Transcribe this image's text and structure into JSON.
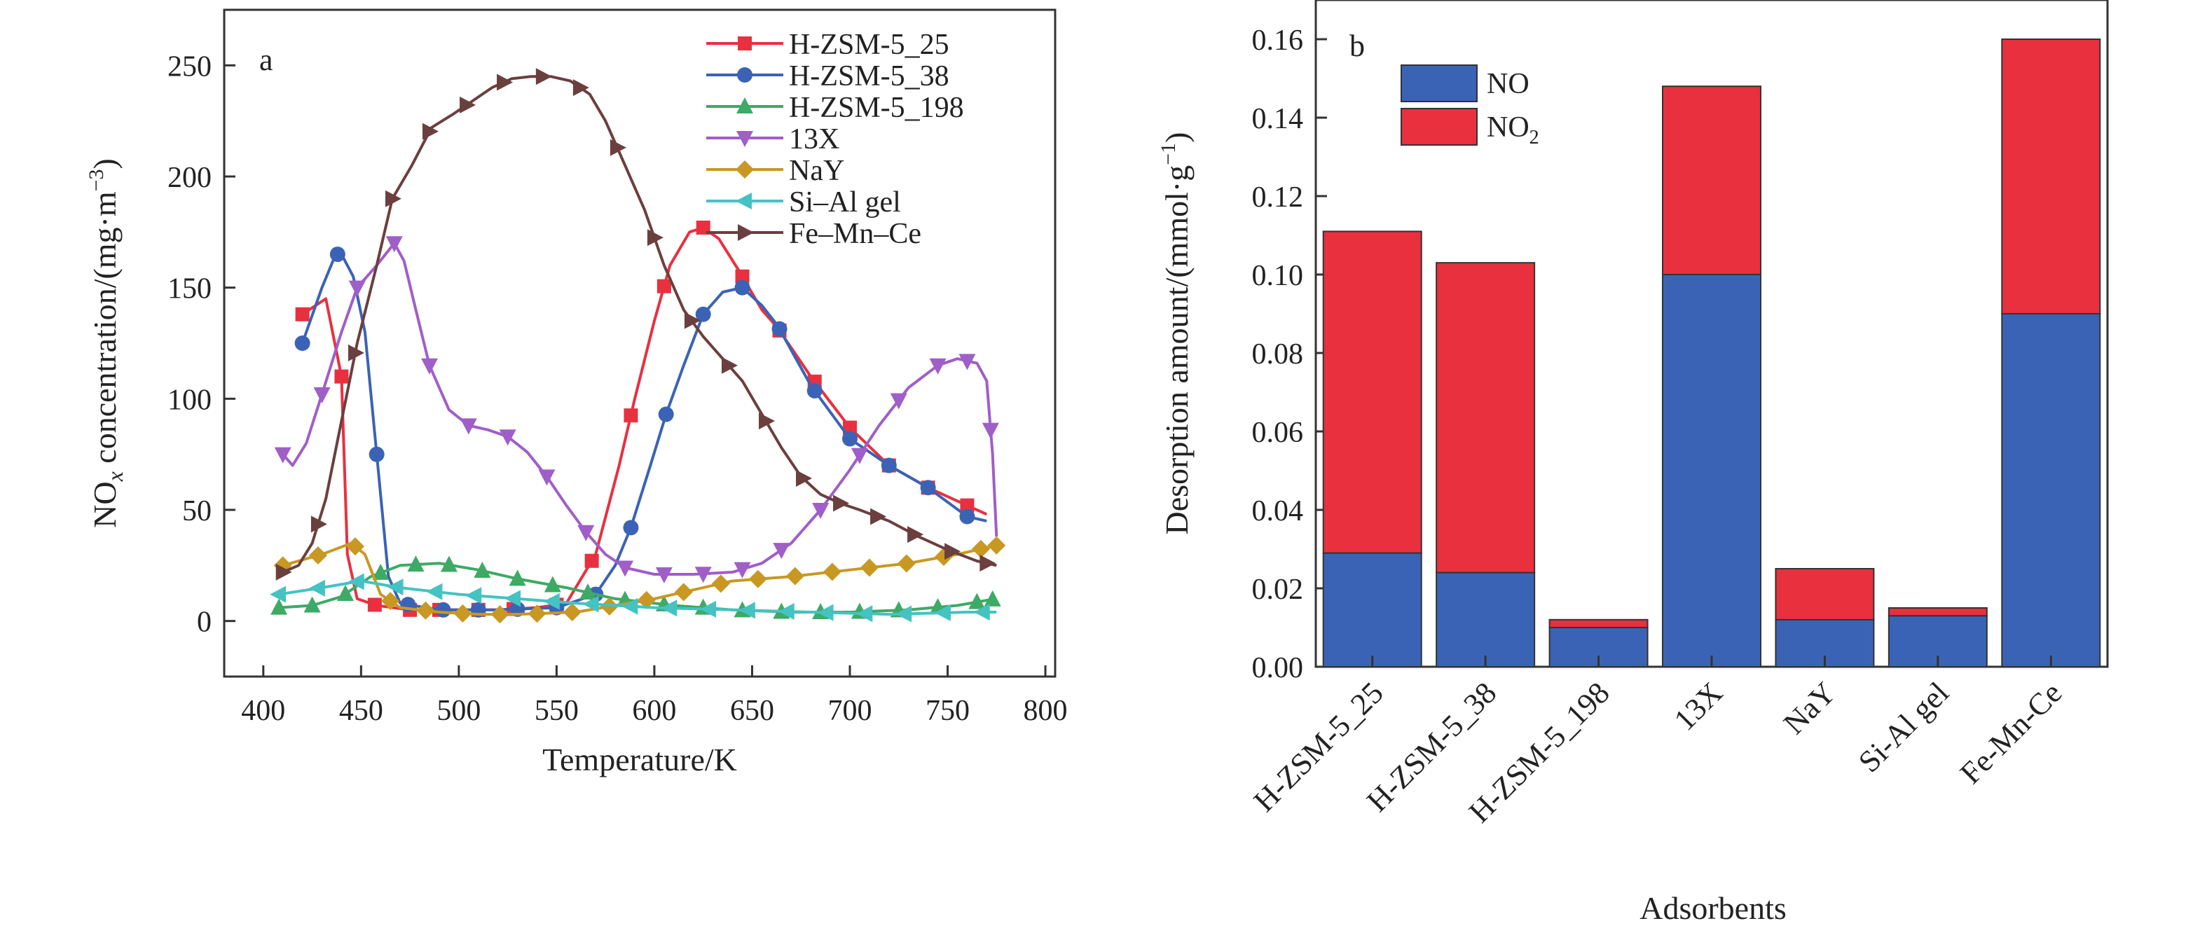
{
  "chart_data": [
    {
      "type": "line",
      "panel_label": "a",
      "xlabel": "Temperature/K",
      "ylabel_main": "NO",
      "ylabel_sub": "x",
      "ylabel_rest": " concentration/(mg·m",
      "ylabel_sup": "−3",
      "ylabel_end": ")",
      "xlim": [
        380,
        805
      ],
      "ylim": [
        -25,
        275
      ],
      "xticks": [
        400,
        450,
        500,
        550,
        600,
        650,
        700,
        750,
        800
      ],
      "yticks": [
        0,
        50,
        100,
        150,
        200,
        250
      ],
      "legend_position": "top-right",
      "series": [
        {
          "name": "H-ZSM-5_25",
          "color": "#e8303f",
          "marker": "square",
          "x": [
            420,
            432,
            440,
            443,
            448,
            458,
            475,
            490,
            520,
            540,
            555,
            570,
            582,
            590,
            600,
            608,
            618,
            625,
            633,
            643,
            655,
            663,
            680,
            700,
            720,
            740,
            760,
            770
          ],
          "y": [
            138,
            145,
            110,
            30,
            10,
            7,
            5,
            5,
            5,
            6,
            8,
            30,
            70,
            100,
            135,
            160,
            175,
            177,
            172,
            158,
            140,
            132,
            110,
            87,
            70,
            60,
            52,
            48
          ],
          "marker_x": [
            420,
            440,
            457,
            475,
            490,
            510,
            528,
            550,
            568,
            588,
            605,
            625,
            645,
            664,
            682,
            700,
            720,
            740,
            760
          ]
        },
        {
          "name": "H-ZSM-5_38",
          "color": "#3b63b5",
          "marker": "circle",
          "x": [
            420,
            430,
            437,
            440,
            446,
            452,
            458,
            464,
            470,
            490,
            520,
            550,
            570,
            580,
            588,
            598,
            606,
            615,
            625,
            635,
            645,
            655,
            663,
            680,
            700,
            720,
            740,
            760,
            770
          ],
          "y": [
            125,
            150,
            165,
            165,
            155,
            130,
            75,
            20,
            8,
            5,
            5,
            6,
            12,
            25,
            42,
            70,
            93,
            115,
            138,
            148,
            150,
            142,
            133,
            106,
            82,
            70,
            60,
            47,
            45
          ],
          "marker_x": [
            420,
            438,
            458,
            474,
            492,
            510,
            530,
            550,
            570,
            588,
            606,
            625,
            645,
            664,
            682,
            700,
            720,
            740,
            760
          ]
        },
        {
          "name": "H-ZSM-5_198",
          "color": "#3daa65",
          "marker": "triangle-up",
          "x": [
            408,
            425,
            440,
            455,
            470,
            490,
            510,
            530,
            555,
            580,
            610,
            640,
            670,
            700,
            730,
            755,
            768,
            775
          ],
          "y": [
            6,
            7,
            11,
            20,
            25,
            26,
            23,
            19,
            15,
            10,
            7,
            5,
            4,
            4,
            5,
            7,
            9,
            10
          ],
          "marker_x": [
            408,
            425,
            442,
            460,
            478,
            495,
            512,
            530,
            548,
            566,
            585,
            605,
            625,
            645,
            665,
            685,
            705,
            725,
            745,
            765,
            773
          ]
        },
        {
          "name": "13X",
          "color": "#a05ec8",
          "marker": "triangle-down",
          "x": [
            410,
            415,
            422,
            430,
            440,
            448,
            458,
            467,
            472,
            478,
            485,
            495,
            505,
            515,
            525,
            535,
            545,
            555,
            565,
            575,
            585,
            600,
            620,
            640,
            655,
            670,
            685,
            700,
            715,
            730,
            745,
            755,
            765,
            770,
            773,
            775
          ],
          "y": [
            75,
            70,
            80,
            102,
            130,
            150,
            160,
            170,
            162,
            140,
            115,
            95,
            88,
            86,
            83,
            76,
            65,
            52,
            40,
            30,
            24,
            21,
            21,
            22,
            26,
            35,
            50,
            68,
            88,
            105,
            115,
            118,
            116,
            108,
            75,
            38
          ],
          "marker_x": [
            410,
            430,
            448,
            467,
            485,
            505,
            525,
            545,
            565,
            585,
            605,
            625,
            645,
            665,
            685,
            705,
            725,
            745,
            760,
            772
          ]
        },
        {
          "name": "NaY",
          "color": "#c89823",
          "marker": "diamond",
          "x": [
            410,
            430,
            445,
            452,
            460,
            470,
            490,
            510,
            530,
            560,
            600,
            640,
            670,
            700,
            730,
            755,
            770,
            775
          ],
          "y": [
            25,
            30,
            35,
            30,
            12,
            6,
            4,
            3,
            3,
            4,
            10,
            18,
            20,
            23,
            26,
            30,
            33,
            34
          ],
          "marker_x": [
            410,
            428,
            447,
            465,
            483,
            502,
            521,
            540,
            558,
            577,
            596,
            615,
            634,
            653,
            672,
            691,
            710,
            729,
            748,
            767,
            775
          ]
        },
        {
          "name": "Si–Al gel",
          "color": "#45c2c2",
          "marker": "triangle-left",
          "x": [
            408,
            430,
            450,
            470,
            500,
            530,
            560,
            600,
            640,
            680,
            720,
            760,
            775
          ],
          "y": [
            12,
            15,
            18,
            15,
            12,
            10,
            8,
            6,
            5,
            4,
            3,
            4,
            4
          ],
          "marker_x": [
            408,
            428,
            448,
            468,
            488,
            508,
            528,
            548,
            568,
            588,
            608,
            628,
            648,
            668,
            688,
            708,
            728,
            748,
            768
          ]
        },
        {
          "name": "Fe–Mn–Ce",
          "color": "#6b3f3e",
          "marker": "triangle-right",
          "x": [
            410,
            418,
            425,
            432,
            440,
            448,
            458,
            466,
            476,
            486,
            497,
            507,
            517,
            527,
            537,
            547,
            557,
            567,
            575,
            585,
            595,
            605,
            615,
            625,
            635,
            645,
            655,
            665,
            675,
            685,
            695,
            705,
            720,
            735,
            750,
            765,
            775
          ],
          "y": [
            22,
            25,
            35,
            55,
            90,
            125,
            160,
            190,
            205,
            222,
            228,
            234,
            240,
            244,
            245,
            245,
            243,
            237,
            225,
            205,
            185,
            160,
            140,
            128,
            118,
            108,
            93,
            78,
            65,
            57,
            53,
            50,
            45,
            38,
            32,
            27,
            25
          ],
          "marker_x": [
            410,
            428,
            447,
            466,
            485,
            504,
            523,
            543,
            562,
            581,
            600,
            619,
            638,
            657,
            676,
            695,
            714,
            733,
            752,
            770
          ]
        }
      ]
    },
    {
      "type": "bar",
      "stacked": true,
      "panel_label": "b",
      "xlabel": "Adsorbents",
      "ylabel_rest": "Desorption amount/(mmol·g",
      "ylabel_sup": "−1",
      "ylabel_end": ")",
      "ylim": [
        0,
        0.17
      ],
      "yticks": [
        "0.00",
        "0.02",
        "0.04",
        "0.06",
        "0.08",
        "0.10",
        "0.12",
        "0.14",
        "0.16"
      ],
      "categories": [
        "H-ZSM-5_25",
        "H-ZSM-5_38",
        "H-ZSM-5_198",
        "13X",
        "NaY",
        "Si-Al gel",
        "Fe-Mn-Ce"
      ],
      "legend_position": "top-left",
      "series": [
        {
          "name": "NO",
          "color": "#3b63b5",
          "values": [
            0.029,
            0.024,
            0.01,
            0.1,
            0.012,
            0.013,
            0.09
          ]
        },
        {
          "name_main": "NO",
          "name_sub": "2",
          "color": "#e8303f",
          "values": [
            0.082,
            0.079,
            0.002,
            0.048,
            0.013,
            0.002,
            0.07
          ]
        }
      ]
    }
  ]
}
